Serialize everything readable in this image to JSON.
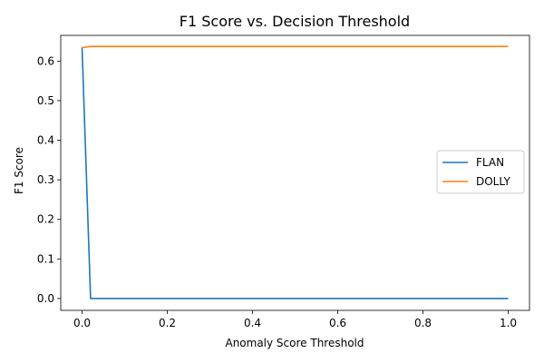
{
  "chart_data": {
    "type": "line",
    "title": "F1 Score vs. Decision Threshold",
    "xlabel": "Anomaly Score Threshold",
    "ylabel": "F1 Score",
    "xlim": [
      -0.05,
      1.05
    ],
    "ylim": [
      -0.03,
      0.665
    ],
    "xticks": [
      0.0,
      0.2,
      0.4,
      0.6,
      0.8,
      1.0
    ],
    "xtick_labels": [
      "0.0",
      "0.2",
      "0.4",
      "0.6",
      "0.8",
      "1.0"
    ],
    "yticks": [
      0.0,
      0.1,
      0.2,
      0.3,
      0.4,
      0.5,
      0.6
    ],
    "ytick_labels": [
      "0.0",
      "0.1",
      "0.2",
      "0.3",
      "0.4",
      "0.5",
      "0.6"
    ],
    "grid": false,
    "legend_position": "center-right",
    "series": [
      {
        "name": "FLAN",
        "color": "#1f77b4",
        "x": [
          0.0,
          0.02,
          0.04,
          0.2,
          0.4,
          0.6,
          0.8,
          1.0
        ],
        "y": [
          0.635,
          0.0,
          0.0,
          0.0,
          0.0,
          0.0,
          0.0,
          0.0
        ]
      },
      {
        "name": "DOLLY",
        "color": "#ff7f0e",
        "x": [
          0.0,
          0.02,
          0.04,
          0.2,
          0.4,
          0.6,
          0.8,
          1.0
        ],
        "y": [
          0.634,
          0.637,
          0.637,
          0.637,
          0.637,
          0.637,
          0.637,
          0.637
        ]
      }
    ]
  }
}
